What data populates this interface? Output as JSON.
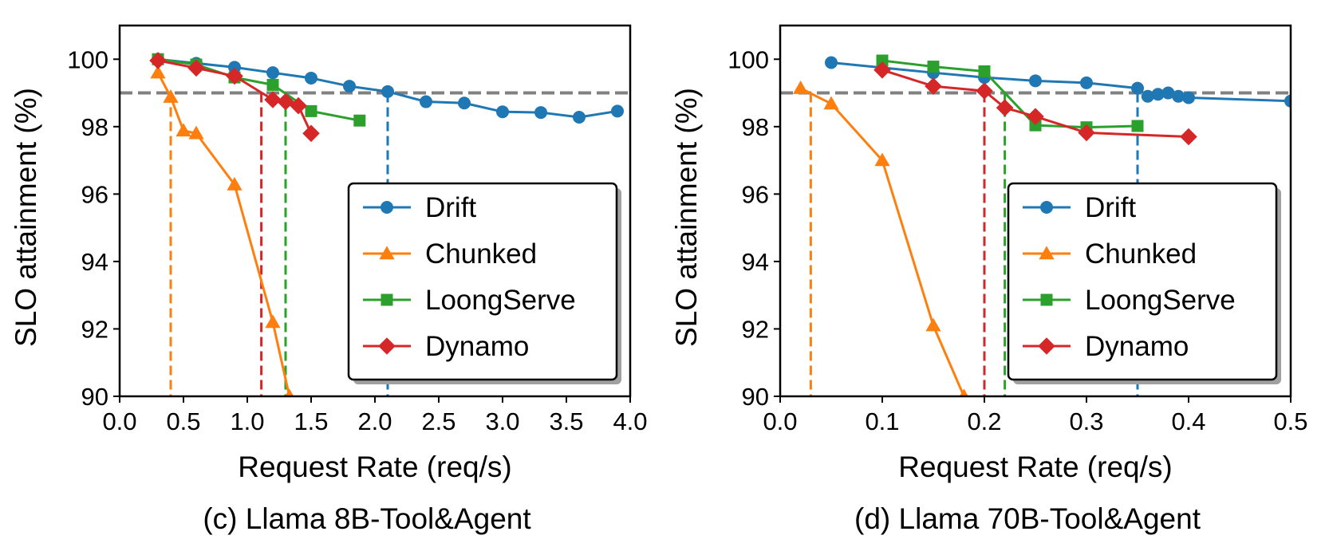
{
  "chart_data": [
    {
      "type": "line",
      "caption": "(c) Llama 8B-Tool&Agent",
      "xlabel": "Request Rate (req/s)",
      "ylabel": "SLO attainment (%)",
      "xlim": [
        0.0,
        4.0
      ],
      "ylim": [
        90,
        101
      ],
      "xticks": [
        "0.0",
        "0.5",
        "1.0",
        "1.5",
        "2.0",
        "2.5",
        "3.0",
        "3.5",
        "4.0"
      ],
      "yticks": [
        "90",
        "92",
        "94",
        "96",
        "98",
        "100"
      ],
      "slo_line": 99,
      "legend_position": "lower-right",
      "series": [
        {
          "name": "Drift",
          "color": "#1f77b4",
          "marker": "circle",
          "x": [
            0.3,
            0.6,
            0.9,
            1.2,
            1.5,
            1.8,
            2.1,
            2.4,
            2.7,
            3.0,
            3.3,
            3.6,
            3.9
          ],
          "y": [
            100.0,
            99.88,
            99.76,
            99.6,
            99.44,
            99.2,
            99.04,
            98.74,
            98.7,
            98.44,
            98.42,
            98.28,
            98.46
          ],
          "threshold_x": 2.1
        },
        {
          "name": "Chunked",
          "color": "#ff7f0e",
          "marker": "triangle",
          "x": [
            0.3,
            0.4,
            0.5,
            0.6,
            0.9,
            1.2,
            1.33
          ],
          "y": [
            99.6,
            98.88,
            97.88,
            97.8,
            96.28,
            92.2,
            90.0
          ],
          "threshold_x": 0.4
        },
        {
          "name": "LoongServe",
          "color": "#2ca02c",
          "marker": "square",
          "x": [
            0.3,
            0.6,
            0.9,
            1.2,
            1.5,
            1.88
          ],
          "y": [
            100.0,
            99.84,
            99.46,
            99.24,
            98.46,
            98.18
          ],
          "threshold_x": 1.3
        },
        {
          "name": "Dynamo",
          "color": "#d62728",
          "marker": "diamond",
          "x": [
            0.3,
            0.6,
            0.9,
            1.2,
            1.3,
            1.4,
            1.5
          ],
          "y": [
            99.96,
            99.74,
            99.5,
            98.8,
            98.74,
            98.62,
            97.8
          ],
          "threshold_x": 1.11
        }
      ]
    },
    {
      "type": "line",
      "caption": "(d) Llama 70B-Tool&Agent",
      "xlabel": "Request Rate (req/s)",
      "ylabel": "SLO attainment (%)",
      "xlim": [
        0.0,
        0.5
      ],
      "ylim": [
        90,
        101
      ],
      "xticks": [
        "0.0",
        "0.1",
        "0.2",
        "0.3",
        "0.4",
        "0.5"
      ],
      "yticks": [
        "90",
        "92",
        "94",
        "96",
        "98",
        "100"
      ],
      "slo_line": 99,
      "legend_position": "lower-right",
      "series": [
        {
          "name": "Drift",
          "color": "#1f77b4",
          "marker": "circle",
          "x": [
            0.05,
            0.15,
            0.2,
            0.25,
            0.3,
            0.35,
            0.36,
            0.37,
            0.38,
            0.39,
            0.4,
            0.5
          ],
          "y": [
            99.9,
            99.6,
            99.46,
            99.36,
            99.3,
            99.14,
            98.9,
            98.96,
            99.0,
            98.9,
            98.86,
            98.76
          ],
          "threshold_x": 0.35
        },
        {
          "name": "Chunked",
          "color": "#ff7f0e",
          "marker": "triangle",
          "x": [
            0.02,
            0.05,
            0.1,
            0.15,
            0.18
          ],
          "y": [
            99.14,
            98.68,
            97.0,
            92.1,
            90.0
          ],
          "threshold_x": 0.03
        },
        {
          "name": "LoongServe",
          "color": "#2ca02c",
          "marker": "square",
          "x": [
            0.1,
            0.15,
            0.2,
            0.25,
            0.3,
            0.35
          ],
          "y": [
            99.96,
            99.78,
            99.64,
            98.04,
            97.98,
            98.02
          ],
          "threshold_x": 0.22
        },
        {
          "name": "Dynamo",
          "color": "#d62728",
          "marker": "diamond",
          "x": [
            0.1,
            0.15,
            0.2,
            0.22,
            0.25,
            0.3,
            0.4
          ],
          "y": [
            99.68,
            99.2,
            99.06,
            98.56,
            98.3,
            97.82,
            97.7
          ],
          "threshold_x": 0.2
        }
      ]
    }
  ]
}
